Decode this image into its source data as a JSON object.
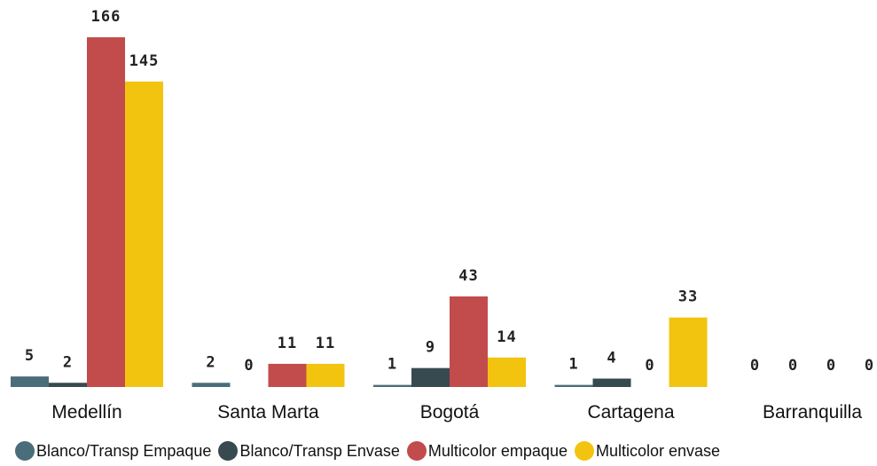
{
  "chart_data": {
    "type": "bar",
    "categories": [
      "Medellín",
      "Santa Marta",
      "Bogotá",
      "Cartagena",
      "Barranquilla"
    ],
    "series": [
      {
        "name": "Blanco/Transp Empaque",
        "color": "#4a6d7a",
        "values": [
          5,
          2,
          1,
          1,
          0
        ]
      },
      {
        "name": "Blanco/Transp Envase",
        "color": "#374a4f",
        "values": [
          2,
          0,
          9,
          4,
          0
        ]
      },
      {
        "name": "Multicolor empaque",
        "color": "#c24b4b",
        "values": [
          166,
          11,
          43,
          0,
          0
        ]
      },
      {
        "name": "Multicolor envase",
        "color": "#f2c40f",
        "values": [
          145,
          11,
          14,
          33,
          0
        ]
      }
    ],
    "value_labels": [
      [
        "5",
        "2",
        "166",
        "145"
      ],
      [
        "2",
        "0",
        "11",
        "11"
      ],
      [
        "1",
        "9",
        "43",
        "14"
      ],
      [
        "1",
        "4",
        "0",
        "33"
      ],
      [
        "0",
        "0",
        "0",
        "0"
      ]
    ],
    "ylim": [
      0,
      166
    ],
    "grid": false,
    "legend_position": "bottom"
  }
}
